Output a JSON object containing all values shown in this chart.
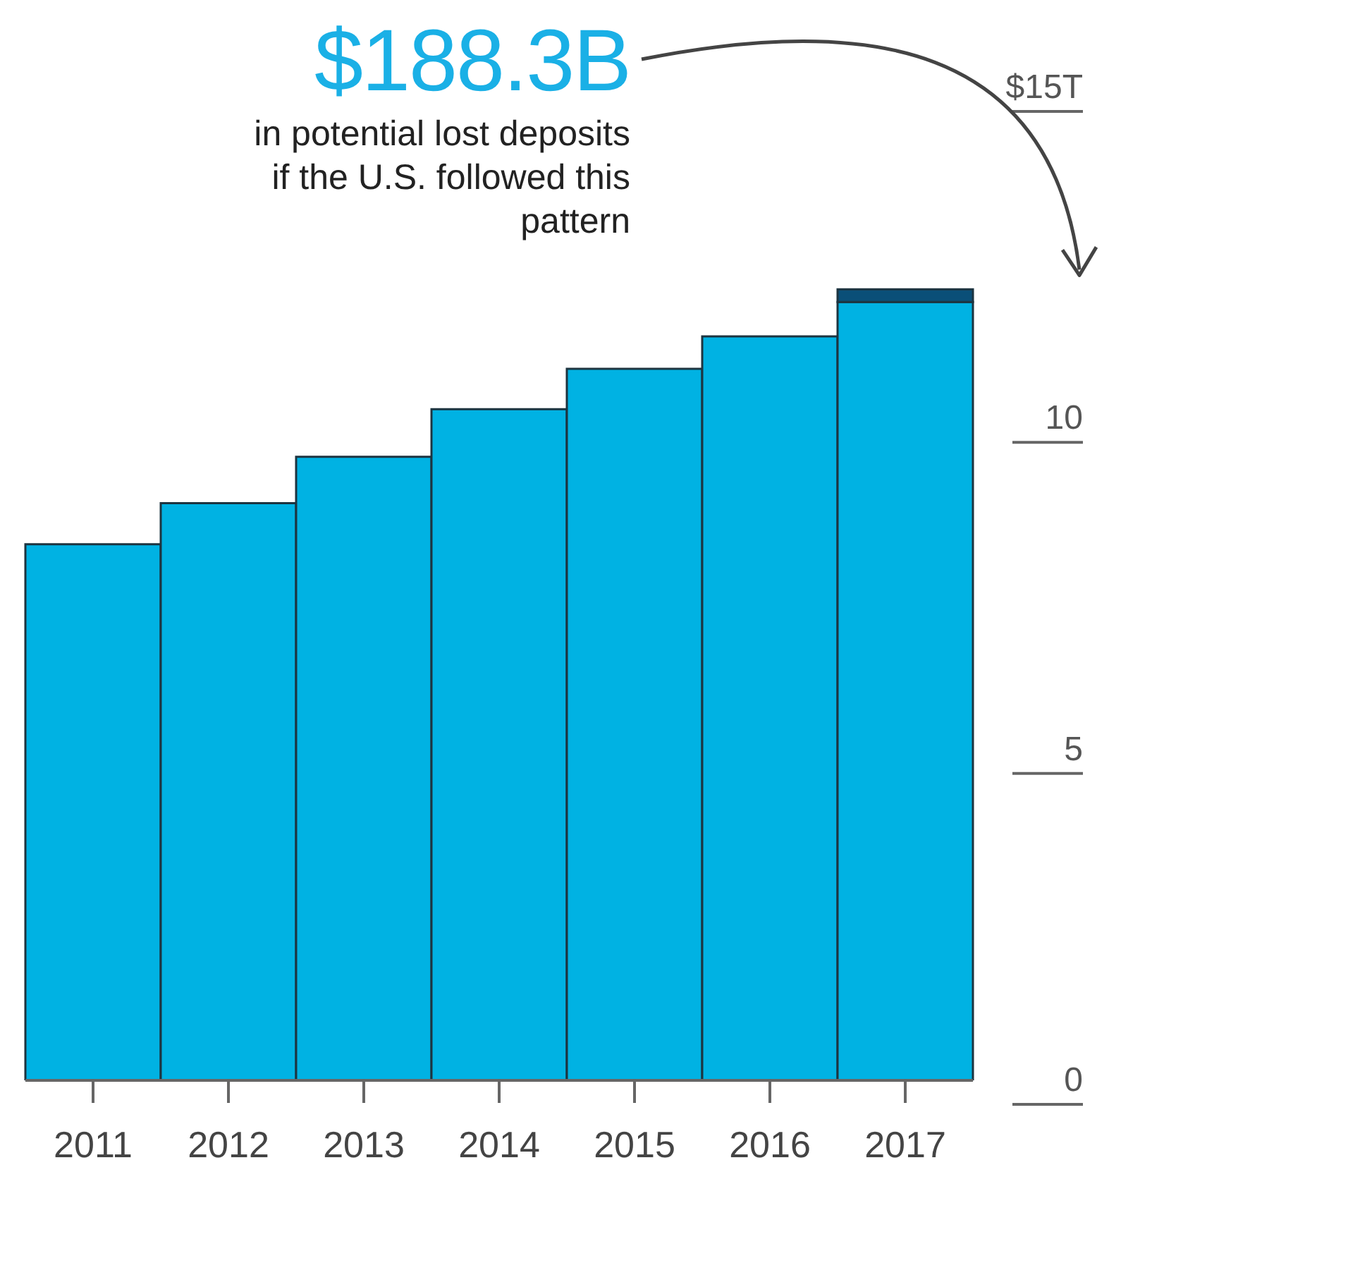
{
  "chart_data": {
    "type": "bar",
    "stacked": true,
    "categories": [
      "2011",
      "2012",
      "2013",
      "2014",
      "2015",
      "2016",
      "2017"
    ],
    "series": [
      {
        "color": "#00b2e3",
        "values": [
          8.1,
          8.72,
          9.42,
          10.14,
          10.75,
          11.24,
          11.76
        ]
      },
      {
        "color": "#0a4f78",
        "values": [
          null,
          null,
          null,
          null,
          null,
          null,
          0.19
        ]
      }
    ],
    "ylim": [
      0,
      15
    ],
    "yticks": [
      0,
      5,
      10,
      {
        "value": 15,
        "label": "$15T"
      }
    ],
    "annotations": [
      "$188.3B",
      "in potential lost deposits if the U.S. followed this pattern"
    ]
  }
}
